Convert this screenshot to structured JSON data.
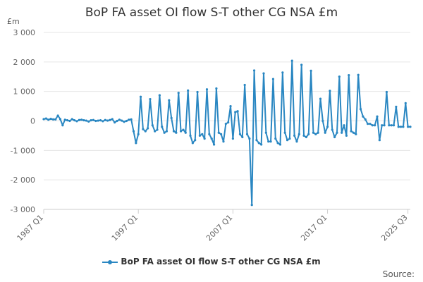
{
  "chart_data": {
    "type": "line",
    "title": "BoP FA asset OI flow S-T other CG NSA £m",
    "ylabel": "£m",
    "xlabel": "",
    "ylim": [
      -3000,
      3000
    ],
    "yticks": [
      "3 000",
      "2 000",
      "1 000",
      "0",
      "-1 000",
      "-2 000",
      "-3 000"
    ],
    "ytick_values": [
      3000,
      2000,
      1000,
      0,
      -1000,
      -2000,
      -3000
    ],
    "xticks": [
      "1987 Q1",
      "1997 Q1",
      "2007 Q1",
      "2017 Q1",
      "2025 Q3"
    ],
    "xtick_index": [
      0,
      40,
      80,
      120,
      154
    ],
    "grid": true,
    "legend_position": "bottom",
    "series": [
      {
        "name": "BoP FA asset OI flow S-T other CG NSA £m",
        "color": "#2a87c2",
        "values": [
          60,
          80,
          40,
          70,
          50,
          50,
          180,
          60,
          -150,
          40,
          20,
          0,
          60,
          20,
          -10,
          30,
          40,
          20,
          10,
          -20,
          20,
          30,
          0,
          10,
          20,
          -10,
          30,
          10,
          30,
          60,
          -50,
          0,
          40,
          10,
          -30,
          0,
          40,
          50,
          -350,
          -750,
          -450,
          820,
          -280,
          -350,
          -250,
          740,
          -150,
          -350,
          -300,
          870,
          -200,
          -400,
          -350,
          700,
          100,
          -350,
          -400,
          950,
          -350,
          -300,
          -400,
          1030,
          -500,
          -750,
          -650,
          980,
          -500,
          -450,
          -600,
          1070,
          -450,
          -600,
          -800,
          1100,
          -400,
          -450,
          -700,
          -100,
          -50,
          500,
          -600,
          300,
          330,
          -450,
          -550,
          1220,
          -450,
          -600,
          -2850,
          1710,
          -650,
          -750,
          -800,
          1610,
          -400,
          -700,
          -700,
          1420,
          -600,
          -750,
          -800,
          1640,
          -400,
          -650,
          -600,
          2040,
          -500,
          -700,
          -450,
          1900,
          -500,
          -550,
          -450,
          1700,
          -400,
          -450,
          -400,
          750,
          0,
          -400,
          -200,
          1020,
          -300,
          -550,
          -400,
          1500,
          -400,
          -150,
          -500,
          1550,
          -350,
          -400,
          -450,
          1560,
          400,
          150,
          50,
          -100,
          -100,
          -150,
          -150,
          150,
          -650,
          -150,
          -150,
          980,
          -150,
          -150,
          -150,
          480,
          -200,
          -200,
          -200,
          600,
          -200,
          -200
        ]
      }
    ]
  },
  "source_label": "Source:"
}
